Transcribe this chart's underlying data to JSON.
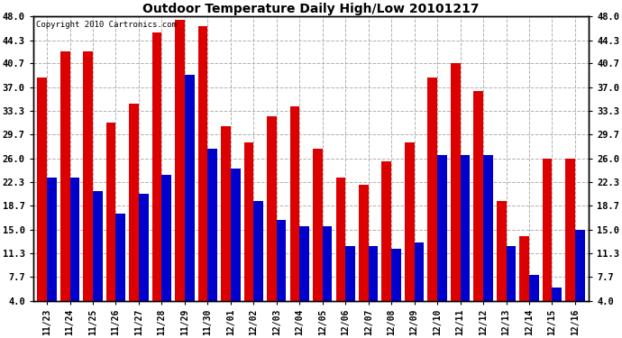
{
  "title": "Outdoor Temperature Daily High/Low 20101217",
  "copyright": "Copyright 2010 Cartronics.com",
  "categories": [
    "11/23",
    "11/24",
    "11/25",
    "11/26",
    "11/27",
    "11/28",
    "11/29",
    "11/30",
    "12/01",
    "12/02",
    "12/03",
    "12/04",
    "12/05",
    "12/06",
    "12/07",
    "12/08",
    "12/09",
    "12/10",
    "12/11",
    "12/12",
    "12/13",
    "12/14",
    "12/15",
    "12/16"
  ],
  "highs": [
    38.5,
    42.5,
    42.5,
    31.5,
    34.5,
    45.5,
    47.5,
    46.5,
    31.0,
    28.5,
    32.5,
    34.0,
    27.5,
    23.0,
    22.0,
    25.5,
    28.5,
    38.5,
    40.7,
    36.5,
    19.5,
    14.0,
    26.0,
    26.0
  ],
  "lows": [
    23.0,
    23.0,
    21.0,
    17.5,
    20.5,
    23.5,
    39.0,
    27.5,
    24.5,
    19.5,
    16.5,
    15.5,
    15.5,
    12.5,
    12.5,
    12.0,
    13.0,
    26.5,
    26.5,
    26.5,
    12.5,
    8.0,
    6.0,
    15.0
  ],
  "high_color": "#dd0000",
  "low_color": "#0000cc",
  "bg_color": "#ffffff",
  "grid_color": "#b0b0b0",
  "yticks": [
    4.0,
    7.7,
    11.3,
    15.0,
    18.7,
    22.3,
    26.0,
    29.7,
    33.3,
    37.0,
    40.7,
    44.3,
    48.0
  ],
  "ymin": 4.0,
  "ymax": 48.0,
  "bar_width": 0.42
}
